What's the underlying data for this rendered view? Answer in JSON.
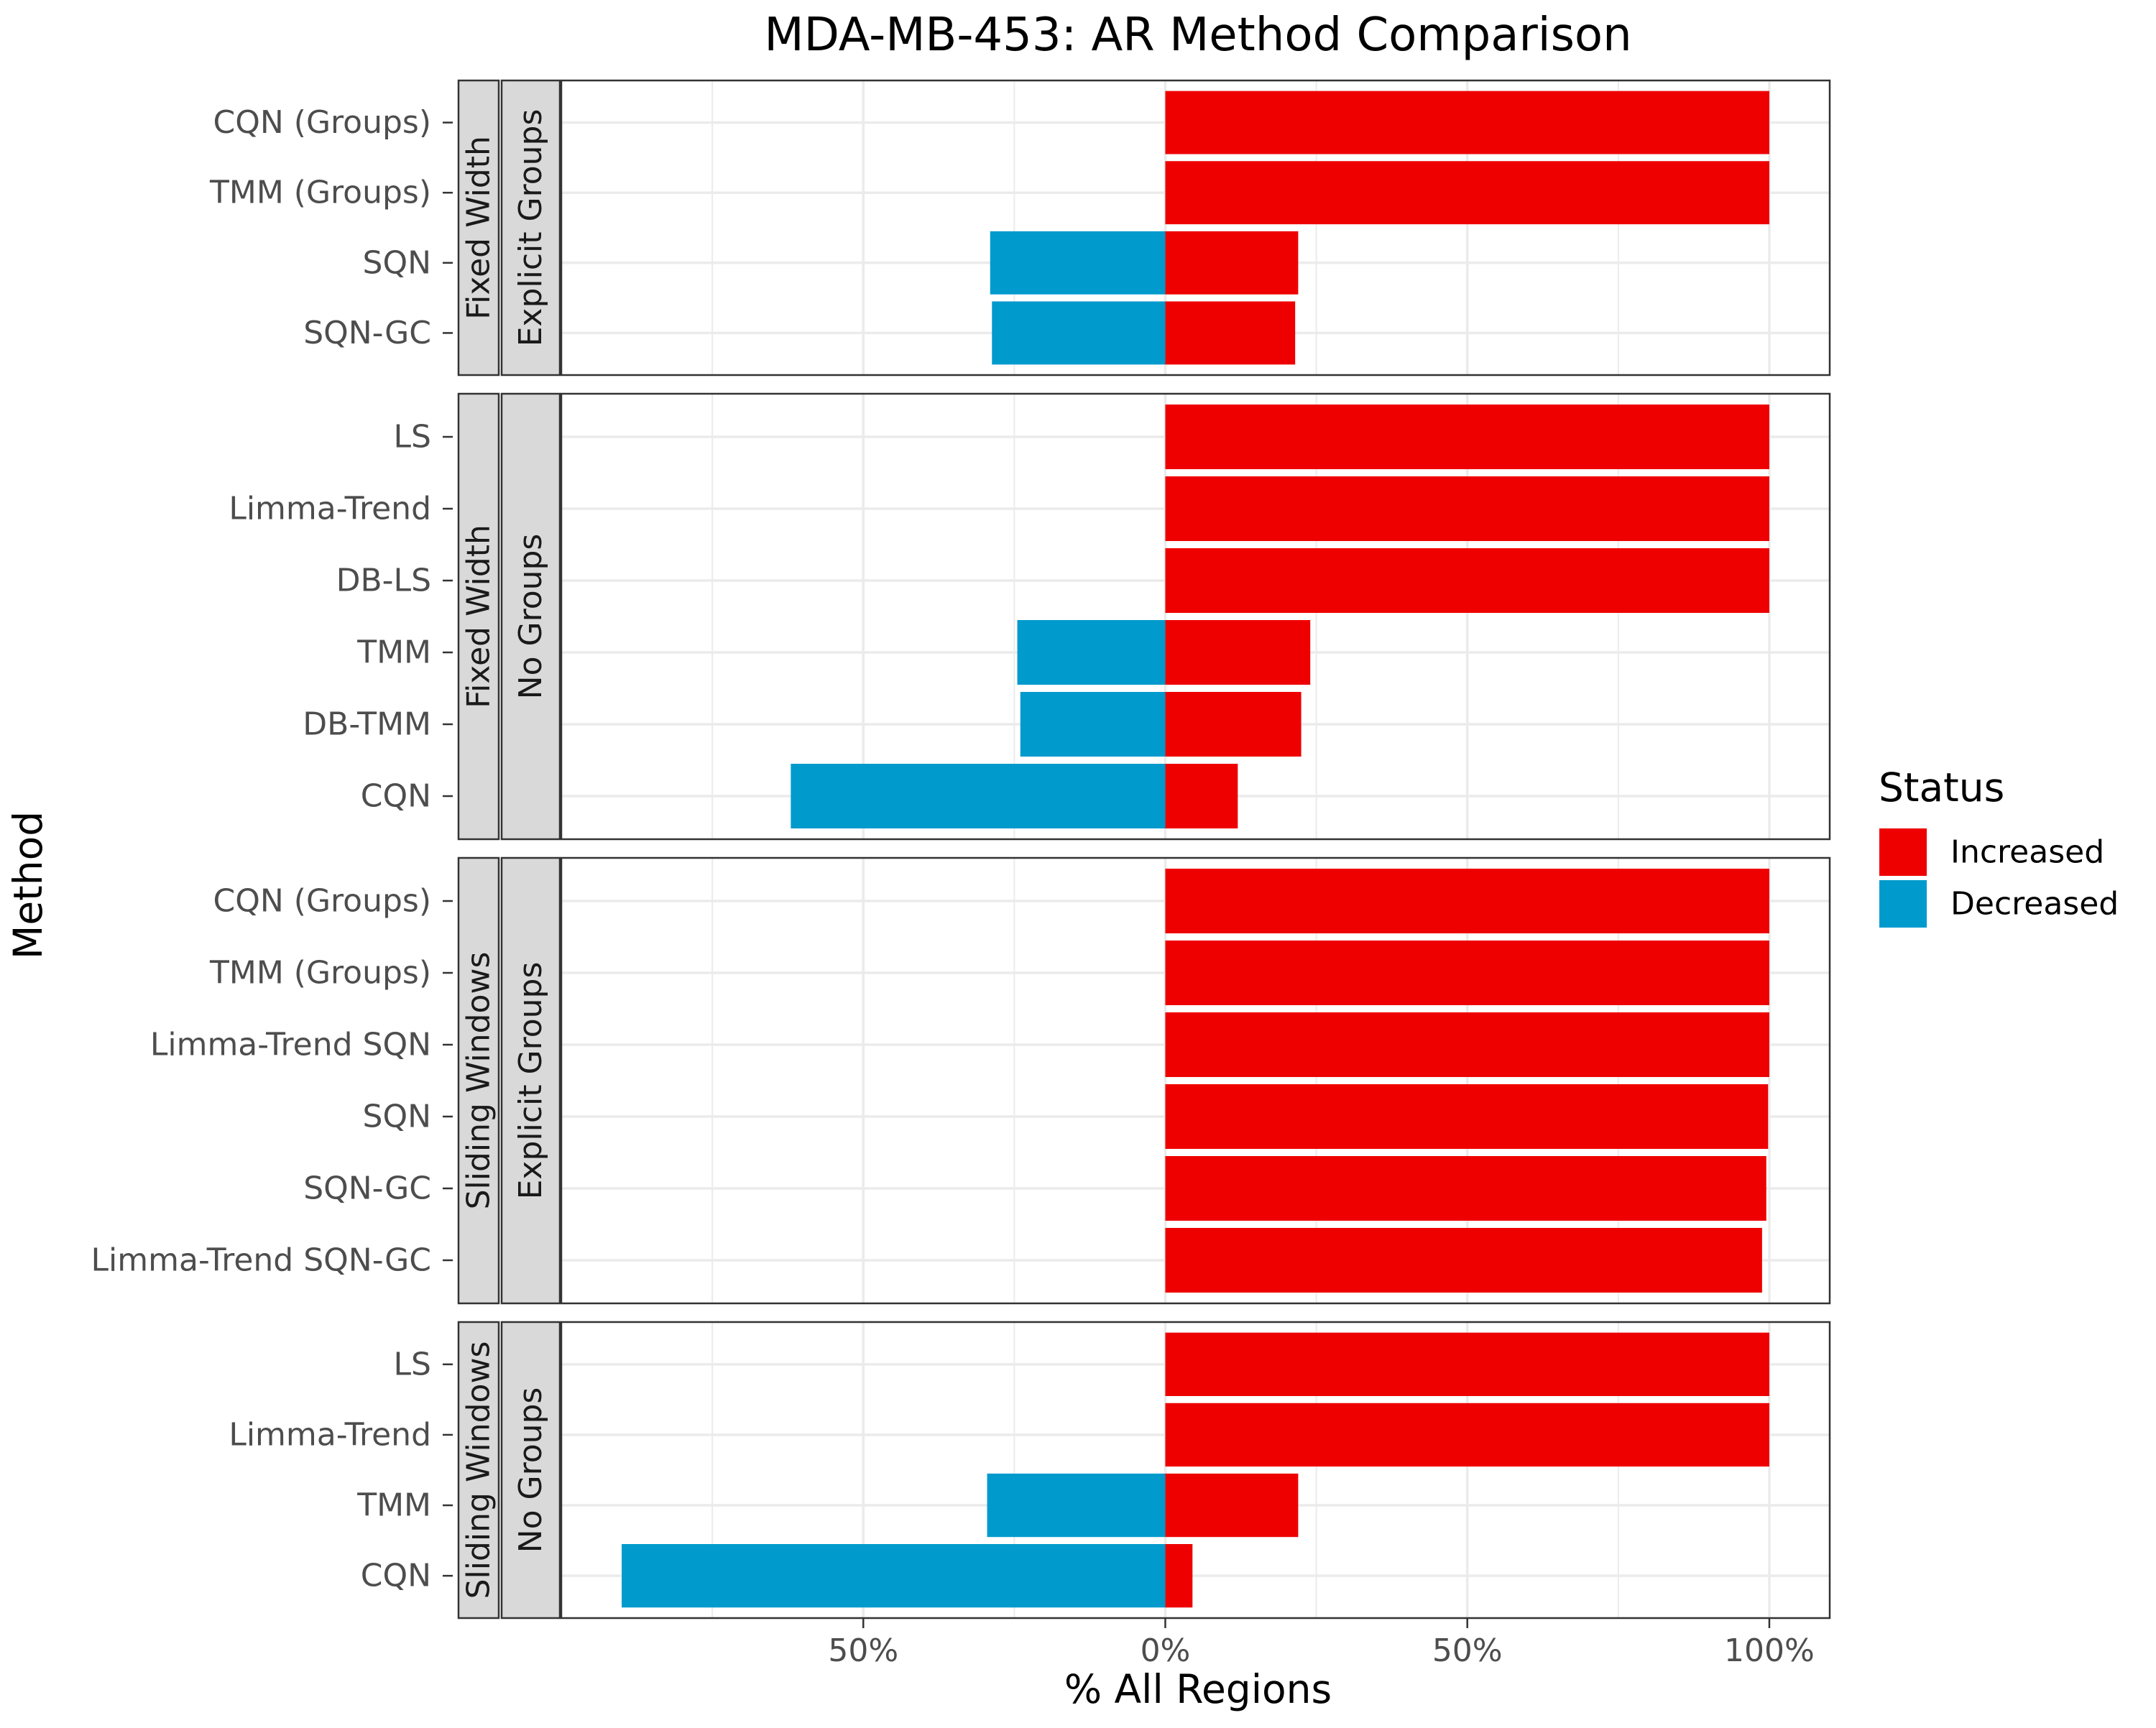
{
  "chart_data": {
    "type": "bar",
    "orientation": "horizontal",
    "title": "MDA-MB-453: AR Method Comparison",
    "xlabel": "% All Regions",
    "ylabel": "Method",
    "xlim": [
      -1.0,
      1.1
    ],
    "x_ticks": [
      {
        "value": -0.5,
        "label": "50%"
      },
      {
        "value": 0.0,
        "label": "0%"
      },
      {
        "value": 0.5,
        "label": "50%"
      },
      {
        "value": 1.0,
        "label": "100%"
      }
    ],
    "grid": true,
    "legend": {
      "title": "Status",
      "position": "right",
      "items": [
        {
          "label": "Increased",
          "color": "#ee0000"
        },
        {
          "label": "Decreased",
          "color": "#009acd"
        }
      ]
    },
    "panels": [
      {
        "strip1": "Fixed Width",
        "strip2": "Explicit Groups",
        "categories": [
          "CQN (Groups)",
          "TMM (Groups)",
          "SQN",
          "SQN-GC"
        ],
        "series": [
          {
            "name": "Increased",
            "values": [
              1.0,
              1.0,
              0.22,
              0.215
            ]
          },
          {
            "name": "Decreased",
            "values": [
              0,
              0,
              -0.29,
              -0.287
            ]
          }
        ]
      },
      {
        "strip1": "Fixed Width",
        "strip2": "No Groups",
        "categories": [
          "LS",
          "Limma-Trend ",
          "DB-LS",
          "TMM",
          "DB-TMM",
          "CQN"
        ],
        "series": [
          {
            "name": "Increased",
            "values": [
              1.0,
              1.0,
              1.0,
              0.24,
              0.225,
              0.12
            ]
          },
          {
            "name": "Decreased",
            "values": [
              0,
              0,
              0,
              -0.245,
              -0.24,
              -0.62
            ]
          }
        ]
      },
      {
        "strip1": "Sliding Windows",
        "strip2": "Explicit Groups",
        "categories": [
          "CQN (Groups)",
          "TMM (Groups)",
          "Limma-Trend SQN",
          "SQN",
          "SQN-GC",
          "Limma-Trend SQN-GC"
        ],
        "series": [
          {
            "name": "Increased",
            "values": [
              1.0,
              1.0,
              1.0,
              0.998,
              0.995,
              0.988
            ]
          },
          {
            "name": "Decreased",
            "values": [
              0,
              0,
              0,
              0,
              0,
              0
            ]
          }
        ]
      },
      {
        "strip1": "Sliding Windows",
        "strip2": "No Groups",
        "categories": [
          "LS",
          "Limma-Trend ",
          "TMM",
          "CQN"
        ],
        "series": [
          {
            "name": "Increased",
            "values": [
              1.0,
              1.0,
              0.22,
              0.045
            ]
          },
          {
            "name": "Decreased",
            "values": [
              0,
              0,
              -0.295,
              -0.9
            ]
          }
        ]
      }
    ]
  }
}
